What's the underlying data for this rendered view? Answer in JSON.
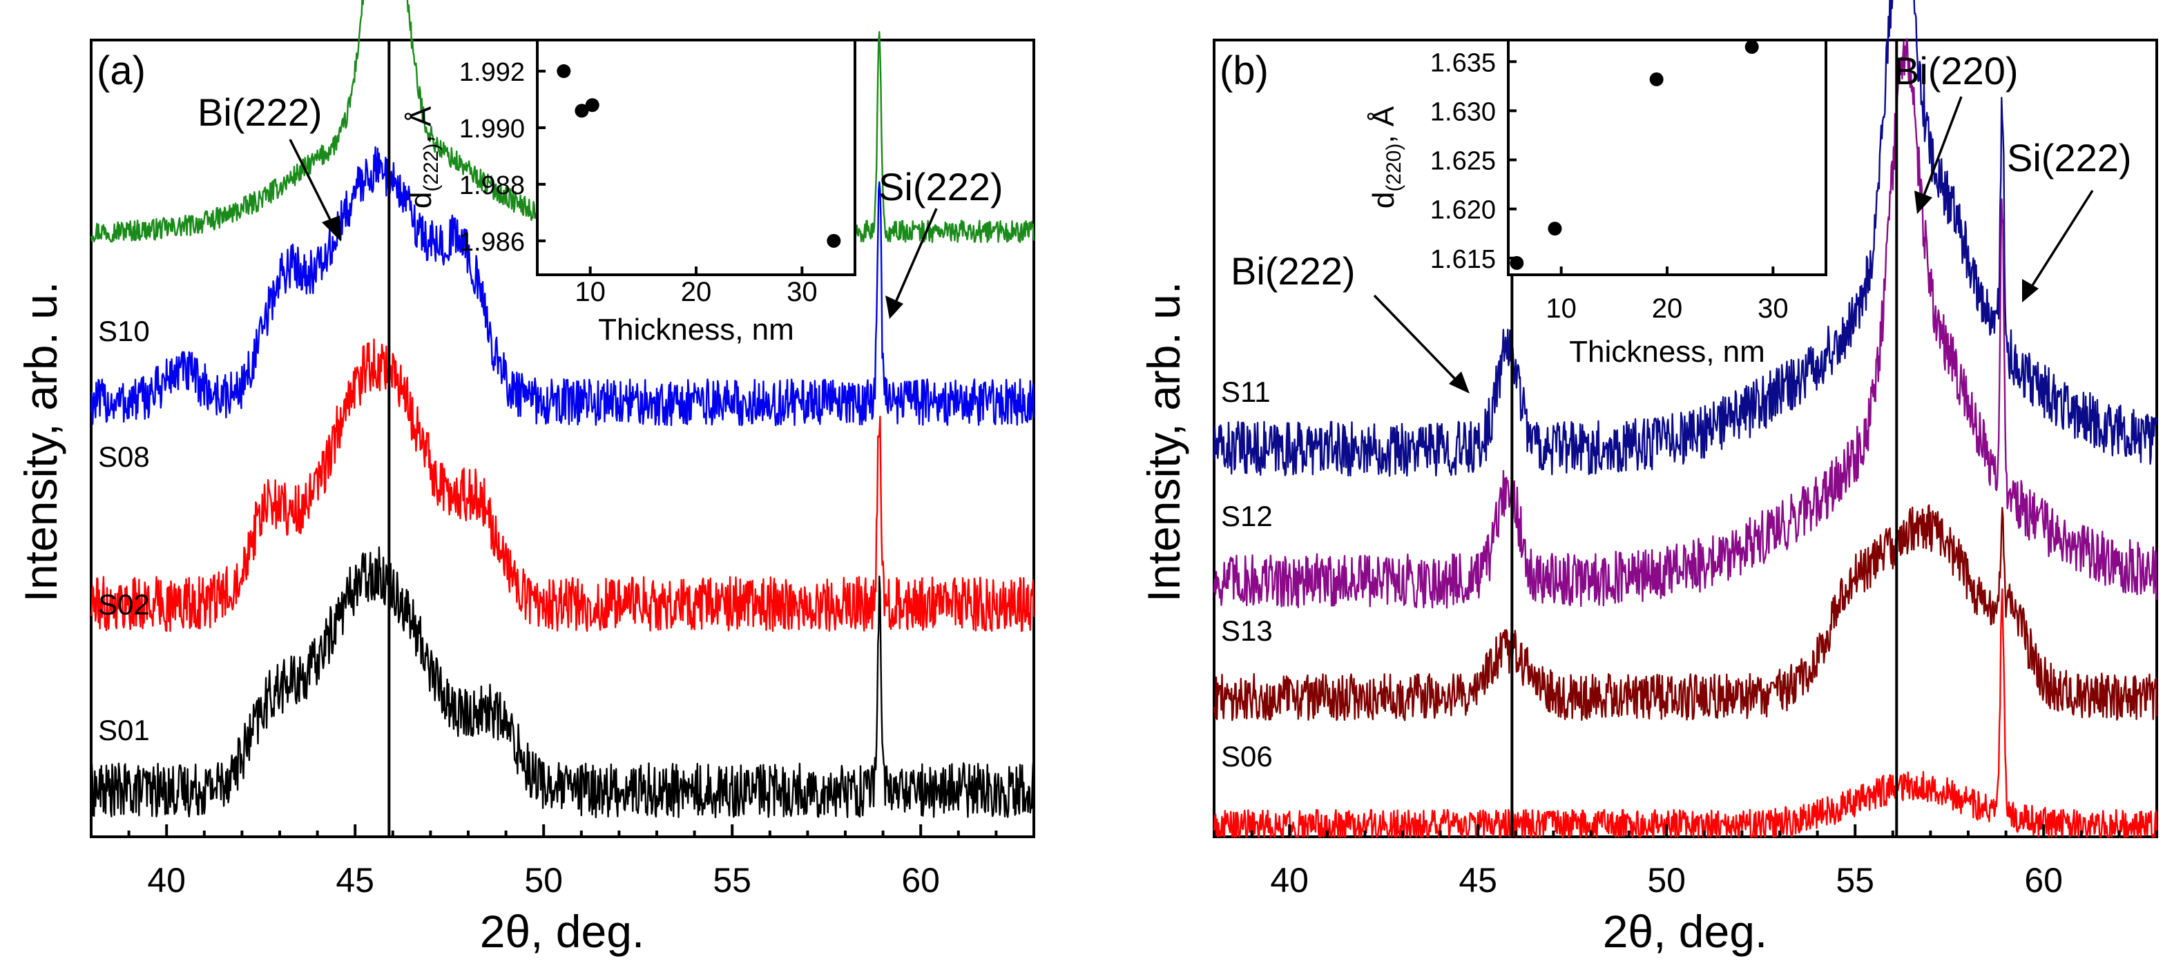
{
  "chart_data": [
    {
      "type": "line",
      "panel_label": "(a)",
      "xlabel": "2θ, deg.",
      "ylabel": "Intensity, arb. u.",
      "xlim": [
        38,
        63
      ],
      "xticks": [
        40,
        45,
        50,
        55,
        60
      ],
      "reference_lines_x": [
        45.9
      ],
      "annotations": [
        {
          "text": "Bi(222)",
          "arrow_to_x": 45.6
        },
        {
          "text": "Si(222)",
          "arrow_to_x": 58.9
        }
      ],
      "series": [
        {
          "name": "S10",
          "color": "#1a8a1a",
          "baseline": 0.78,
          "noise": 0.014,
          "peaks": [
            {
              "x": 45.8,
              "h": 0.42,
              "w": 0.45
            },
            {
              "x": 45.8,
              "h": 0.13,
              "w": 2.2
            },
            {
              "x": 58.9,
              "h": 0.26,
              "w": 0.05
            }
          ]
        },
        {
          "name": "S08",
          "color": "#0000ee",
          "baseline": 0.56,
          "noise": 0.03,
          "peaks": [
            {
              "x": 45.6,
              "h": 0.3,
              "w": 1.3
            },
            {
              "x": 43.1,
              "h": 0.12,
              "w": 0.55
            },
            {
              "x": 47.9,
              "h": 0.14,
              "w": 0.55
            },
            {
              "x": 40.4,
              "h": 0.04,
              "w": 0.5
            },
            {
              "x": 58.9,
              "h": 0.3,
              "w": 0.05
            }
          ]
        },
        {
          "name": "S02",
          "color": "#ff0000",
          "baseline": 0.3,
          "noise": 0.035,
          "peaks": [
            {
              "x": 45.6,
              "h": 0.31,
              "w": 1.3
            },
            {
              "x": 42.7,
              "h": 0.1,
              "w": 0.55
            },
            {
              "x": 48.3,
              "h": 0.1,
              "w": 0.55
            },
            {
              "x": 58.9,
              "h": 0.25,
              "w": 0.05
            }
          ]
        },
        {
          "name": "S01",
          "color": "#000000",
          "baseline": 0.06,
          "noise": 0.035,
          "peaks": [
            {
              "x": 45.5,
              "h": 0.28,
              "w": 1.4
            },
            {
              "x": 42.8,
              "h": 0.08,
              "w": 0.6
            },
            {
              "x": 48.7,
              "h": 0.08,
              "w": 0.6
            },
            {
              "x": 58.9,
              "h": 0.25,
              "w": 0.05
            }
          ]
        }
      ],
      "inset": {
        "type": "scatter",
        "xlabel": "Thickness, nm",
        "ylabel": "d(222), Å",
        "xlim": [
          5,
          35
        ],
        "ylim": [
          1.9848,
          1.9931
        ],
        "xticks": [
          10,
          20,
          30
        ],
        "yticks": [
          "1.986",
          "1.988",
          "1.990",
          "1.992"
        ],
        "x": [
          7.5,
          9.2,
          10.2,
          33
        ],
        "y": [
          1.992,
          1.9906,
          1.9908,
          1.986
        ]
      }
    },
    {
      "type": "line",
      "panel_label": "(b)",
      "xlabel": "2θ, deg.",
      "ylabel": "Intensity, arb. u.",
      "xlim": [
        38,
        63
      ],
      "xticks": [
        40,
        45,
        50,
        55,
        60
      ],
      "reference_lines_x": [
        45.9,
        56.1
      ],
      "annotations": [
        {
          "text": "Bi(222)",
          "arrow_to_x": 45.6
        },
        {
          "text": "Bi(220)",
          "arrow_to_x": 56.5
        },
        {
          "text": "Si(222)",
          "arrow_to_x": 59.0
        }
      ],
      "series": [
        {
          "name": "S11",
          "color": "#0a0a8a",
          "baseline": 0.5,
          "noise": 0.035,
          "peaks": [
            {
              "x": 45.8,
              "h": 0.13,
              "w": 0.3
            },
            {
              "x": 56.2,
              "h": 0.38,
              "w": 0.35
            },
            {
              "x": 56.9,
              "h": 0.2,
              "w": 1.0
            },
            {
              "x": 56.5,
              "h": 0.16,
              "w": 2.8
            },
            {
              "x": 58.9,
              "h": 0.3,
              "w": 0.05
            }
          ]
        },
        {
          "name": "S12",
          "color": "#8a0a8a",
          "baseline": 0.33,
          "noise": 0.035,
          "peaks": [
            {
              "x": 45.8,
              "h": 0.12,
              "w": 0.3
            },
            {
              "x": 56.3,
              "h": 0.38,
              "w": 0.35
            },
            {
              "x": 56.9,
              "h": 0.18,
              "w": 1.0
            },
            {
              "x": 56.5,
              "h": 0.15,
              "w": 2.8
            },
            {
              "x": 58.9,
              "h": 0.36,
              "w": 0.05
            }
          ]
        },
        {
          "name": "S13",
          "color": "#800000",
          "baseline": 0.18,
          "noise": 0.03,
          "peaks": [
            {
              "x": 45.8,
              "h": 0.06,
              "w": 0.5
            },
            {
              "x": 56.8,
              "h": 0.22,
              "w": 1.4
            },
            {
              "x": 54.8,
              "h": 0.06,
              "w": 0.6
            },
            {
              "x": 59.2,
              "h": 0.06,
              "w": 0.4
            },
            {
              "x": 58.9,
              "h": 0.1,
              "w": 0.05
            }
          ]
        },
        {
          "name": "S06",
          "color": "#ff0000",
          "baseline": 0.015,
          "noise": 0.02,
          "peaks": [
            {
              "x": 56.5,
              "h": 0.05,
              "w": 1.5
            },
            {
              "x": 58.9,
              "h": 0.28,
              "w": 0.05
            }
          ]
        }
      ],
      "inset": {
        "type": "scatter",
        "xlabel": "Thickness, nm",
        "ylabel": "d(220), Å",
        "xlim": [
          5,
          35
        ],
        "ylim": [
          1.6133,
          1.6372
        ],
        "xticks": [
          10,
          20,
          30
        ],
        "yticks": [
          "1.615",
          "1.620",
          "1.625",
          "1.630",
          "1.635"
        ],
        "x": [
          5.8,
          9.4,
          19,
          28
        ],
        "y": [
          1.6145,
          1.618,
          1.6332,
          1.6365
        ]
      }
    }
  ]
}
